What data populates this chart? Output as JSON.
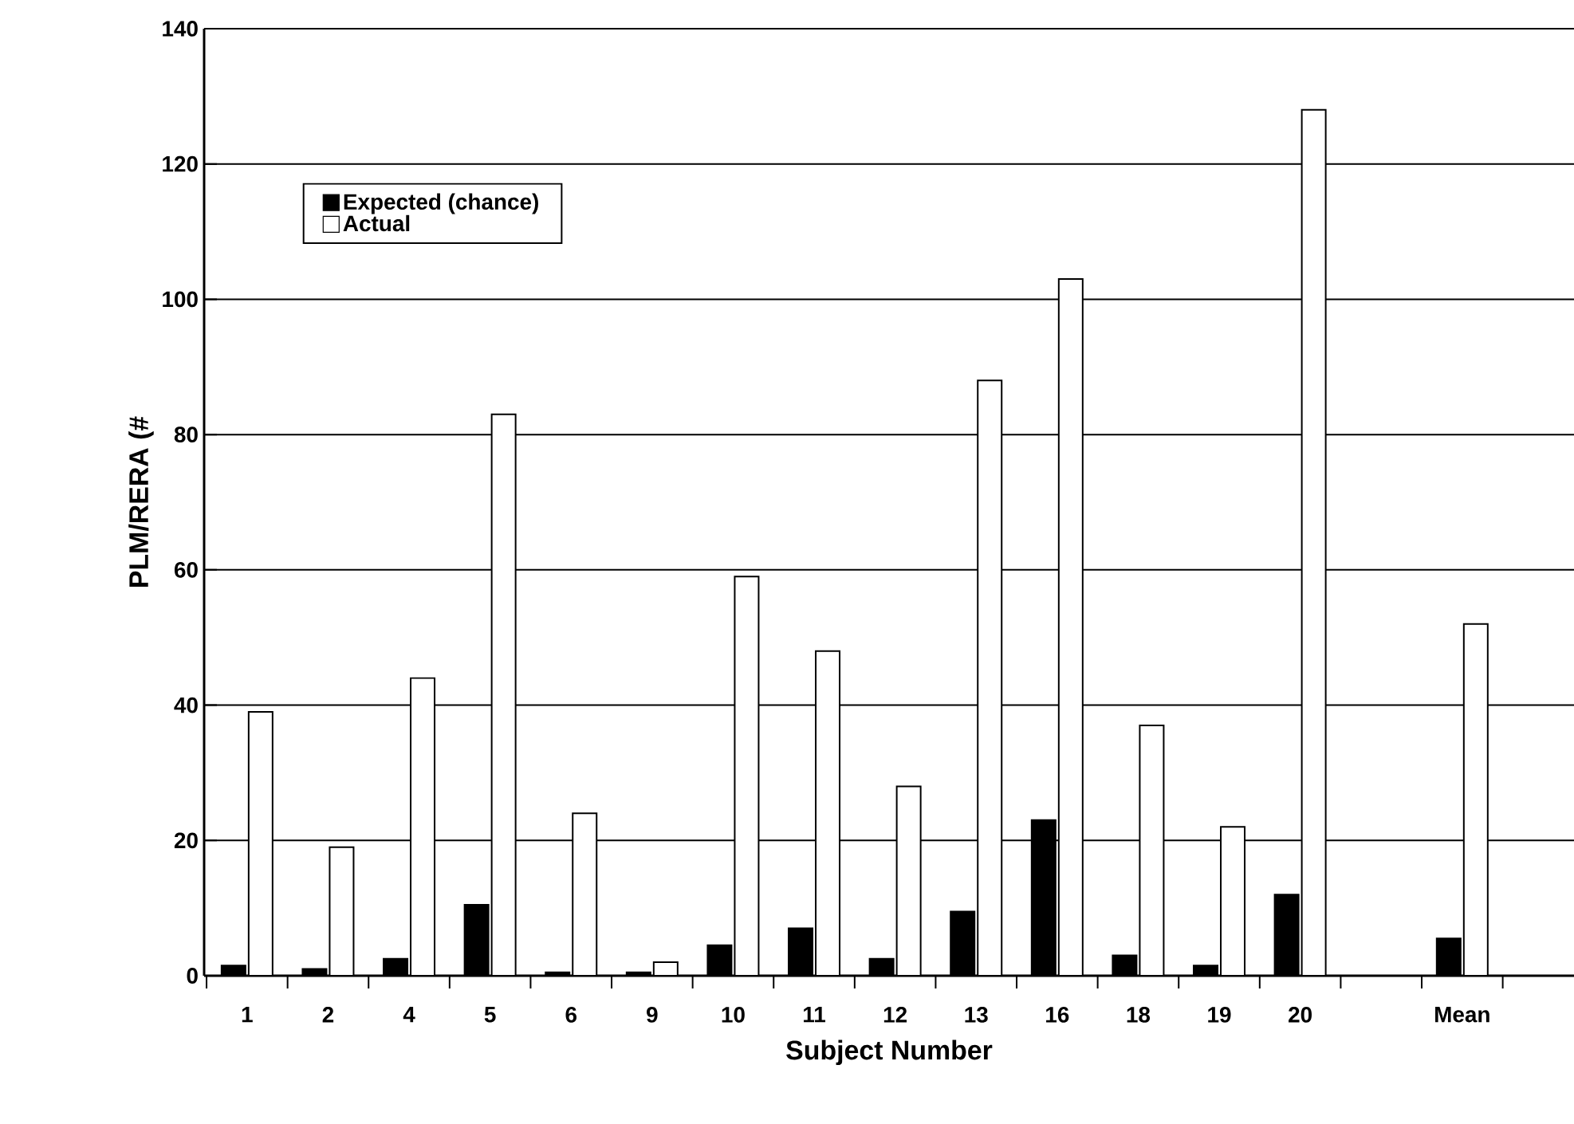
{
  "chart_data": {
    "type": "bar",
    "xlabel": "Subject Number",
    "ylabel": "PLM/RERA (#",
    "categories": [
      "1",
      "2",
      "4",
      "5",
      "6",
      "9",
      "10",
      "11",
      "12",
      "13",
      "16",
      "18",
      "19",
      "20",
      null,
      "Mean"
    ],
    "series": [
      {
        "name": "Expected (chance)",
        "color": "#000000",
        "values": [
          1.5,
          1,
          2.5,
          10.5,
          0.5,
          0.5,
          4.5,
          7,
          2.5,
          9.5,
          23,
          3,
          1.5,
          12,
          null,
          5.5
        ]
      },
      {
        "name": "Actual",
        "color": "#ffffff",
        "values": [
          39,
          19,
          44,
          83,
          24,
          2,
          59,
          48,
          28,
          88,
          103,
          37,
          22,
          128,
          null,
          52
        ]
      }
    ],
    "ylim": [
      0,
      140
    ],
    "yticks": [
      0,
      20,
      40,
      60,
      80,
      100,
      120,
      140
    ],
    "grid": "y",
    "legend": "top left"
  }
}
